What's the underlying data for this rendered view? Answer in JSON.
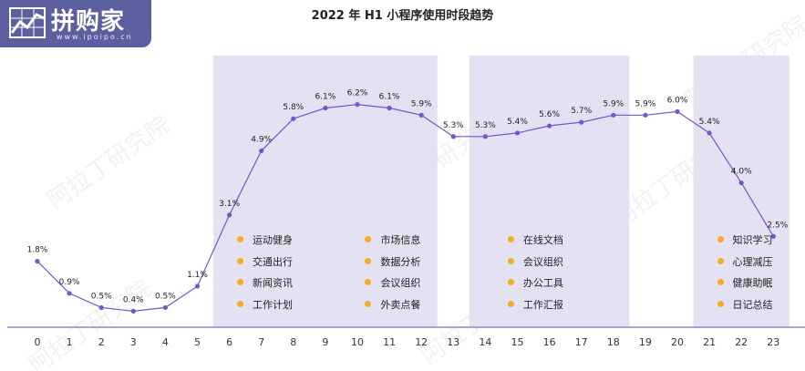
{
  "logo": {
    "name": "拼购家",
    "url": "www.ipoipo.cn"
  },
  "watermark": "阿拉丁研究院",
  "colors": {
    "line": "#6a5acd",
    "band": "#e4e1f2",
    "dot": "#f0ad2a",
    "logo_bg": "#5b5fa0"
  },
  "chart_data": {
    "type": "line",
    "title": "2022 年 H1 小程序使用时段趋势",
    "xlabel": "",
    "ylabel": "",
    "categories": [
      "0",
      "1",
      "2",
      "3",
      "4",
      "5",
      "6",
      "7",
      "8",
      "9",
      "10",
      "11",
      "12",
      "13",
      "14",
      "15",
      "16",
      "17",
      "18",
      "19",
      "20",
      "21",
      "22",
      "23"
    ],
    "series": [
      {
        "values": [
          1.8,
          0.9,
          0.5,
          0.4,
          0.5,
          1.1,
          3.1,
          4.9,
          5.8,
          6.1,
          6.2,
          6.1,
          5.9,
          5.3,
          5.3,
          5.4,
          5.6,
          5.7,
          5.9,
          5.9,
          6.0,
          5.4,
          4.0,
          2.5
        ]
      }
    ],
    "value_labels": [
      "1.8%",
      "0.9%",
      "0.5%",
      "0.4%",
      "0.5%",
      "1.1%",
      "3.1%",
      "4.9%",
      "5.8%",
      "6.1%",
      "6.2%",
      "6.1%",
      "5.9%",
      "5.3%",
      "5.3%",
      "5.4%",
      "5.6%",
      "5.7%",
      "5.9%",
      "5.9%",
      "6.0%",
      "5.4%",
      "4.0%",
      "2.5%"
    ],
    "ylim": [
      0,
      7
    ],
    "grid": false,
    "highlight_bands": [
      {
        "from": "6",
        "to": "9",
        "items": [
          "运动健身",
          "交通出行",
          "新闻资讯",
          "工作计划"
        ]
      },
      {
        "from": "10",
        "to": "12",
        "items": [
          "市场信息",
          "数据分析",
          "会议组织",
          "外卖点餐"
        ]
      },
      {
        "from": "14",
        "to": "18",
        "items": [
          "在线文档",
          "会议组织",
          "办公工具",
          "工作汇报"
        ]
      },
      {
        "from": "21",
        "to": "23",
        "items": [
          "知识学习",
          "心理减压",
          "健康助眠",
          "日记总结"
        ]
      }
    ]
  }
}
